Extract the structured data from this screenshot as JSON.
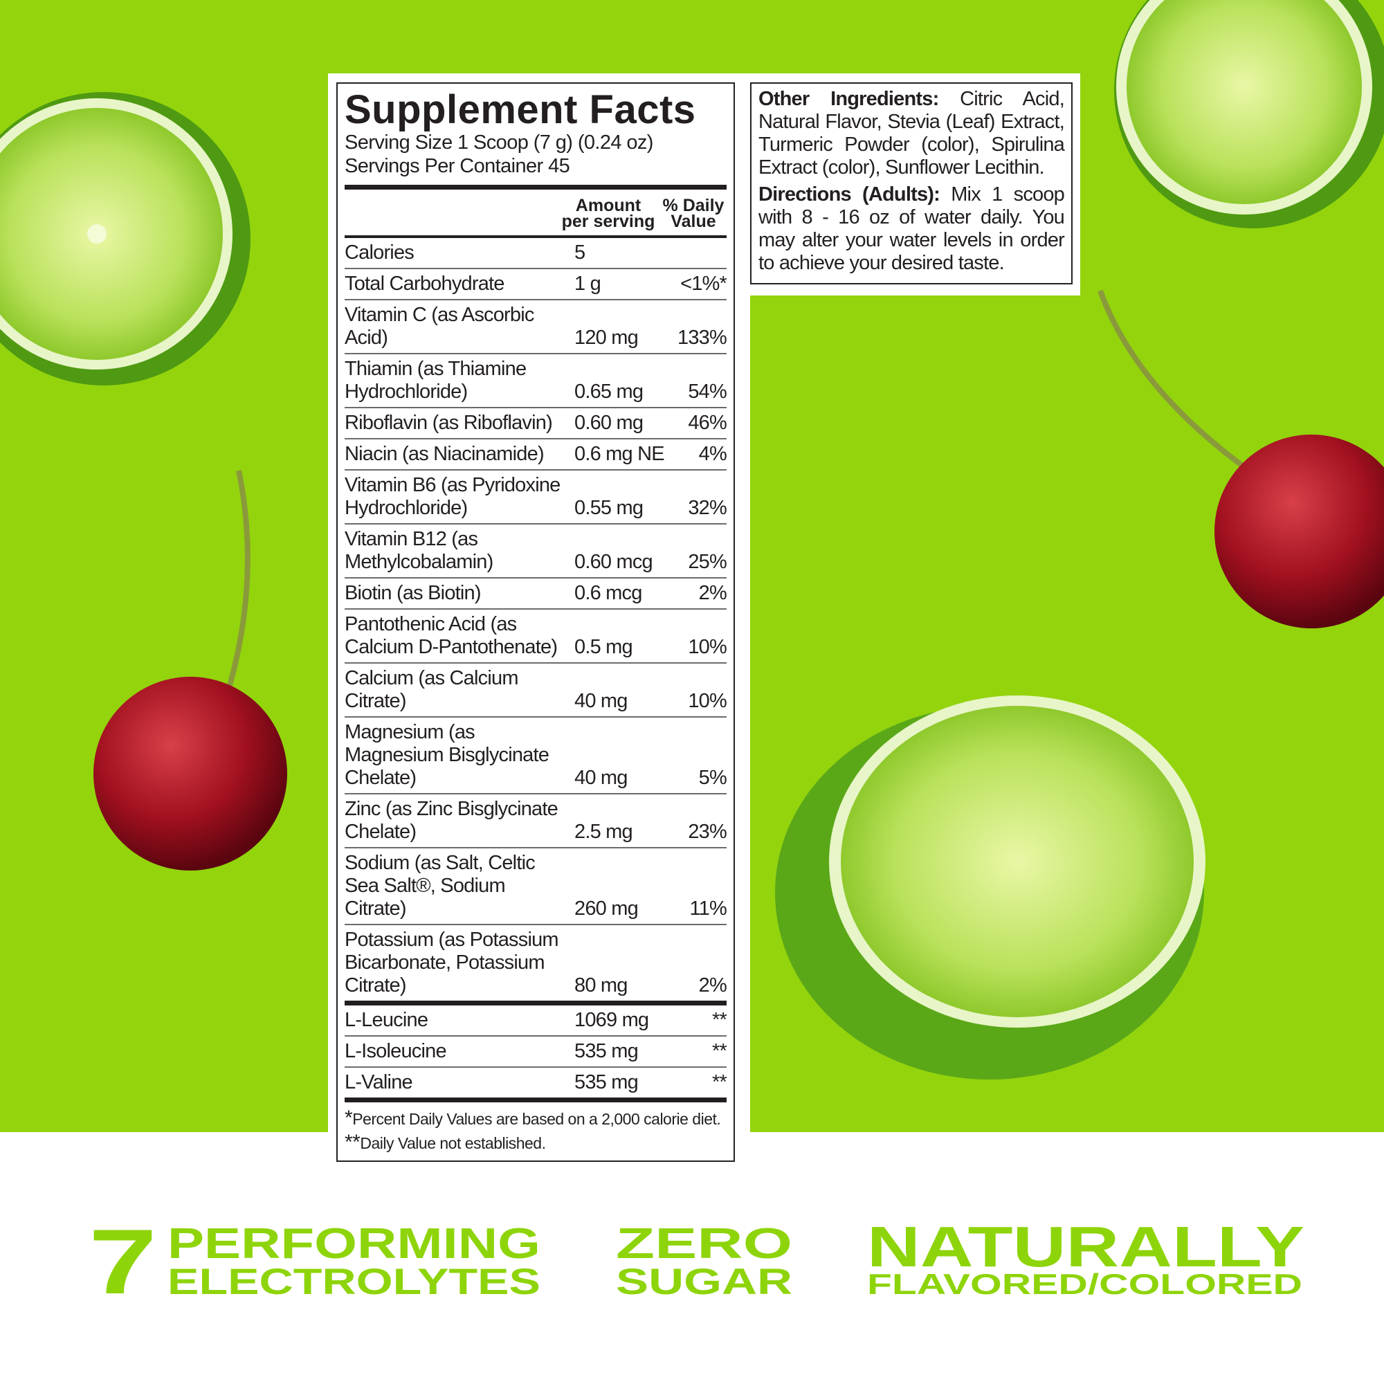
{
  "colors": {
    "background_green": "#93d40d",
    "text_green": "#8ed40a",
    "label_text": "#231f20"
  },
  "supplement_facts": {
    "title": "Supplement Facts",
    "serving_size": "Serving Size 1 Scoop (7 g) (0.24 oz)",
    "servings_per_container": "Servings Per Container 45",
    "header": {
      "amount": "Amount\nper serving",
      "dv": "% Daily\nValue"
    },
    "rows": [
      {
        "name": "Calories",
        "amount": "5",
        "dv": ""
      },
      {
        "name": "Total Carbohydrate",
        "amount": "1 g",
        "dv": "<1%*"
      },
      {
        "name": "Vitamin C (as Ascorbic Acid)",
        "amount": "120 mg",
        "dv": "133%"
      },
      {
        "name": "Thiamin (as Thiamine Hydrochloride)",
        "amount": "0.65 mg",
        "dv": "54%"
      },
      {
        "name": "Riboflavin (as Riboflavin)",
        "amount": "0.60 mg",
        "dv": "46%"
      },
      {
        "name": "Niacin (as Niacinamide)",
        "amount": "0.6 mg NE",
        "dv": "4%"
      },
      {
        "name": "Vitamin B6 (as Pyridoxine Hydrochloride)",
        "amount": "0.55 mg",
        "dv": "32%"
      },
      {
        "name": "Vitamin B12 (as Methylcobalamin)",
        "amount": "0.60 mcg",
        "dv": "25%"
      },
      {
        "name": "Biotin (as Biotin)",
        "amount": "0.6 mcg",
        "dv": "2%"
      },
      {
        "name": "Pantothenic Acid (as Calcium D-Pantothenate)",
        "amount": "0.5 mg",
        "dv": "10%"
      },
      {
        "name": "Calcium (as Calcium Citrate)",
        "amount": "40 mg",
        "dv": "10%"
      },
      {
        "name": "Magnesium (as Magnesium Bisglycinate Chelate)",
        "amount": "40 mg",
        "dv": "5%"
      },
      {
        "name": "Zinc (as Zinc Bisglycinate Chelate)",
        "amount": "2.5 mg",
        "dv": "23%"
      },
      {
        "name": "Sodium (as Salt, Celtic Sea Salt®, Sodium Citrate)",
        "amount": "260 mg",
        "dv": "11%"
      },
      {
        "name": "Potassium (as Potassium Bicarbonate, Potassium Citrate)",
        "amount": "80 mg",
        "dv": "2%"
      },
      {
        "name": "L-Leucine",
        "amount": "1069 mg",
        "dv": "**"
      },
      {
        "name": "L-Isoleucine",
        "amount": "535 mg",
        "dv": "**"
      },
      {
        "name": "L-Valine",
        "amount": "535 mg",
        "dv": "**"
      }
    ],
    "footnotes": [
      {
        "mark": "*",
        "text": "Percent Daily Values are based on a 2,000 calorie diet."
      },
      {
        "mark": "**",
        "text": "Daily Value not established."
      }
    ]
  },
  "other_ingredients": {
    "label": "Other Ingredients:",
    "text": " Citric Acid, Natural Flavor, Stevia (Leaf) Extract, Turmeric Powder (color), Spirulina Extract (color), Sunflower Lecithin."
  },
  "directions": {
    "label": "Directions (Adults):",
    "text": " Mix 1 scoop with 8 - 16 oz of water daily. You may alter your water levels in order to achieve your desired taste."
  },
  "claims": {
    "number": "7",
    "performing": "PERFORMING",
    "electrolytes": "ELECTROLYTES",
    "zero": "ZERO",
    "sugar": "SUGAR",
    "naturally": "NATURALLY",
    "flavored_colored": "FLAVORED/COLORED"
  }
}
